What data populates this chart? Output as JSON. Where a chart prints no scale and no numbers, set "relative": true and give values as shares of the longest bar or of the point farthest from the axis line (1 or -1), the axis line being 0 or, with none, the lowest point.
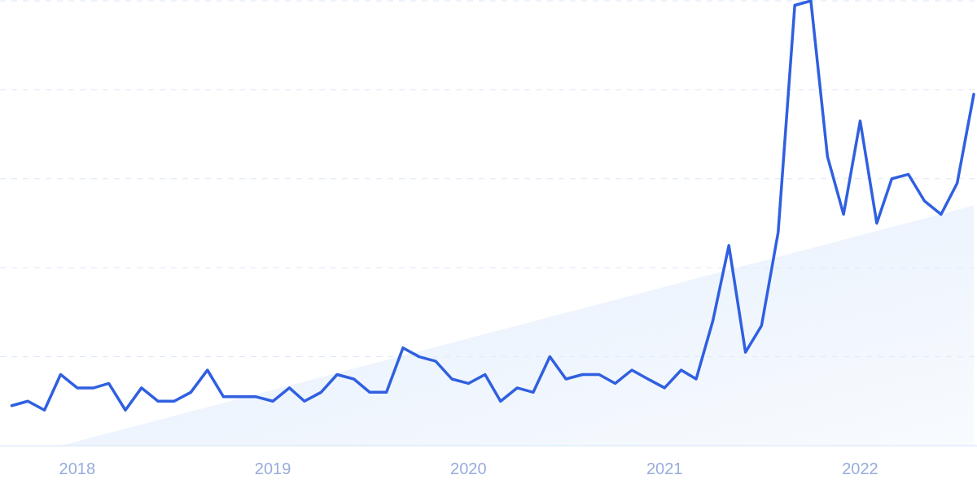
{
  "chart_data": {
    "type": "line",
    "relative": true,
    "grid": "y",
    "x": [
      "2017-09",
      "2017-10",
      "2017-11",
      "2017-12",
      "2018-01",
      "2018-02",
      "2018-03",
      "2018-04",
      "2018-05",
      "2018-06",
      "2018-07",
      "2018-08",
      "2018-09",
      "2018-10",
      "2018-11",
      "2018-12",
      "2019-01",
      "2019-02",
      "2019-03",
      "2019-04",
      "2019-05",
      "2019-06",
      "2019-07",
      "2019-08",
      "2019-09",
      "2019-10",
      "2019-11",
      "2019-12",
      "2020-01",
      "2020-02",
      "2020-03",
      "2020-04",
      "2020-05",
      "2020-06",
      "2020-07",
      "2020-08",
      "2020-09",
      "2020-10",
      "2020-11",
      "2020-12",
      "2021-01",
      "2021-02",
      "2021-03",
      "2021-04",
      "2021-05",
      "2021-06",
      "2021-07",
      "2021-08",
      "2021-09",
      "2021-10",
      "2021-11",
      "2021-12",
      "2022-01",
      "2022-02",
      "2022-03",
      "2022-04",
      "2022-05",
      "2022-06",
      "2022-07",
      "2022-08"
    ],
    "xlim": [
      "2017-08-10",
      "2022-08-07"
    ],
    "xticks": [
      "2018",
      "2019",
      "2020",
      "2021",
      "2022"
    ],
    "series": [
      {
        "type": "area",
        "color": "#e3eefc",
        "x": [
          "2017-12",
          "2022-08"
        ],
        "values": [
          0,
          0.54
        ]
      },
      {
        "color": "#3060e0",
        "values": [
          0.09,
          0.1,
          0.08,
          0.16,
          0.13,
          0.13,
          0.14,
          0.08,
          0.13,
          0.1,
          0.1,
          0.12,
          0.17,
          0.11,
          0.11,
          0.11,
          0.1,
          0.13,
          0.1,
          0.12,
          0.16,
          0.15,
          0.12,
          0.12,
          0.22,
          0.2,
          0.19,
          0.15,
          0.14,
          0.16,
          0.1,
          0.13,
          0.12,
          0.2,
          0.15,
          0.16,
          0.16,
          0.14,
          0.17,
          0.15,
          0.13,
          0.17,
          0.15,
          0.28,
          0.45,
          0.21,
          0.27,
          0.48,
          0.99,
          1,
          0.65,
          0.52,
          0.73,
          0.5,
          0.6,
          0.61,
          0.55,
          0.52,
          0.59,
          0.79
        ]
      }
    ]
  }
}
